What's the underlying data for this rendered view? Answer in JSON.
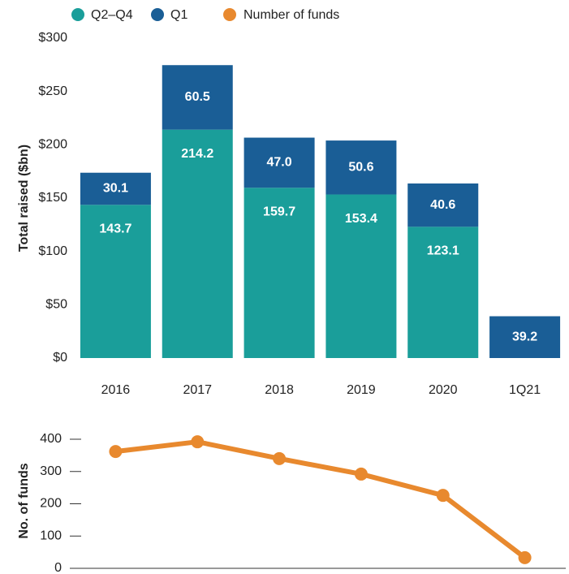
{
  "chart_data": [
    {
      "type": "bar",
      "stacked": true,
      "categories": [
        "2016",
        "2017",
        "2018",
        "2019",
        "2020",
        "1Q21"
      ],
      "ylabel": "Total raised ($bn)",
      "ylim": [
        0,
        300
      ],
      "yticks": [
        {
          "value": 0,
          "label": "$0"
        },
        {
          "value": 50,
          "label": "$50"
        },
        {
          "value": 100,
          "label": "$100"
        },
        {
          "value": 150,
          "label": "$150"
        },
        {
          "value": 200,
          "label": "$200"
        },
        {
          "value": 250,
          "label": "$250"
        },
        {
          "value": 300,
          "label": "$300"
        }
      ],
      "series": [
        {
          "name": "Q2–Q4",
          "color": "#1a9e9a",
          "values": [
            143.7,
            214.2,
            159.7,
            153.4,
            123.1,
            null
          ]
        },
        {
          "name": "Q1",
          "color": "#1a5e96",
          "values": [
            30.1,
            60.5,
            47.0,
            50.6,
            40.6,
            39.2
          ],
          "value_labels": [
            "30.1",
            "60.5",
            "47.0",
            "50.6",
            "40.6",
            "39.2"
          ]
        }
      ]
    },
    {
      "type": "line",
      "ylabel": "No. of funds",
      "ylim": [
        0,
        450
      ],
      "yticks": [
        0,
        100,
        200,
        300,
        400
      ],
      "series": [
        {
          "name": "Number of funds",
          "color": "#e8892e",
          "values": [
            362,
            392,
            340,
            292,
            226,
            33
          ]
        }
      ]
    }
  ]
}
